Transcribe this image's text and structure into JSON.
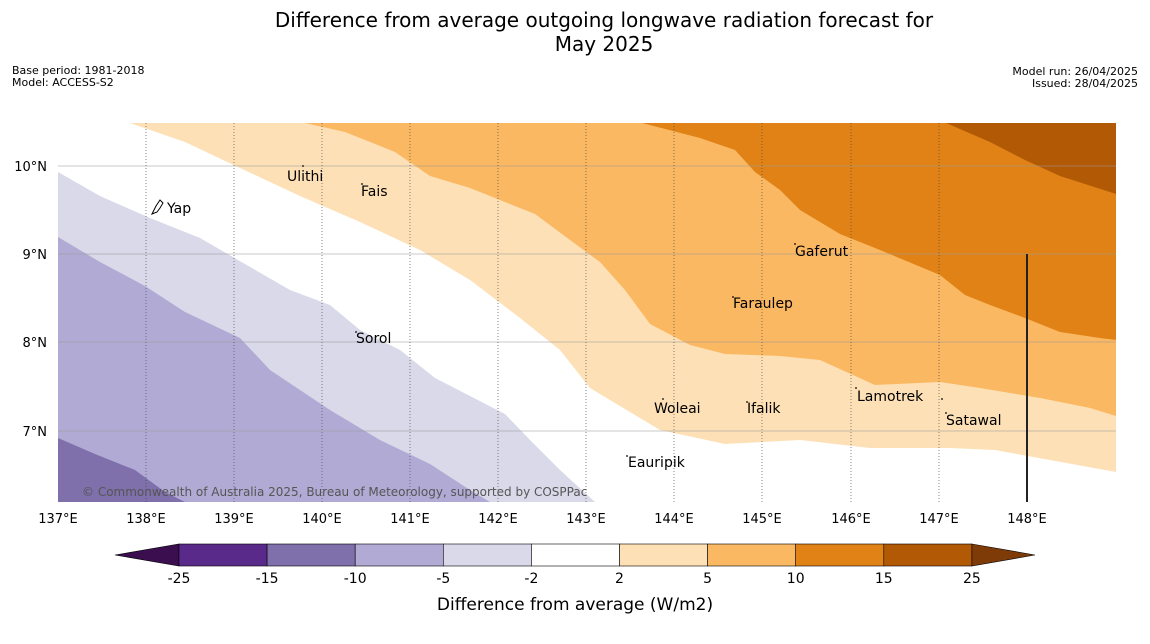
{
  "header": {
    "title_line1": "Difference from average outgoing longwave radiation forecast for",
    "title_line2": "May 2025",
    "base_period": "Base period: 1981-2018",
    "model": "Model: ACCESS-S2",
    "model_run": "Model run: 26/04/2025",
    "issued": "Issued: 28/04/2025"
  },
  "map": {
    "lon_ticks": [
      "137°E",
      "138°E",
      "139°E",
      "140°E",
      "141°E",
      "142°E",
      "143°E",
      "144°E",
      "145°E",
      "146°E",
      "147°E",
      "148°E"
    ],
    "lat_ticks": [
      "10°N",
      "9°N",
      "8°N",
      "7°N"
    ],
    "places": [
      "Ulithi",
      "Fais",
      "Yap",
      "Gaferut",
      "Faraulep",
      "Sorol",
      "Woleai",
      "Ifalik",
      "Lamotrek",
      "Satawal",
      "Eauripik"
    ],
    "copyright": "© Commonwealth of Australia 2025, Bureau of Meteorology, supported by COSPPac"
  },
  "colorbar": {
    "tick_labels": [
      "-25",
      "-15",
      "-10",
      "-5",
      "-2",
      "2",
      "5",
      "10",
      "15",
      "25"
    ],
    "label": "Difference from average (W/m2)",
    "colors": [
      "#3b0f4f",
      "#5a2a8a",
      "#7f6fab",
      "#b1aad4",
      "#d9d9ea",
      "#ffffff",
      "#fde0b5",
      "#fbb863",
      "#e08215",
      "#b25906",
      "#7e3b08"
    ]
  }
}
